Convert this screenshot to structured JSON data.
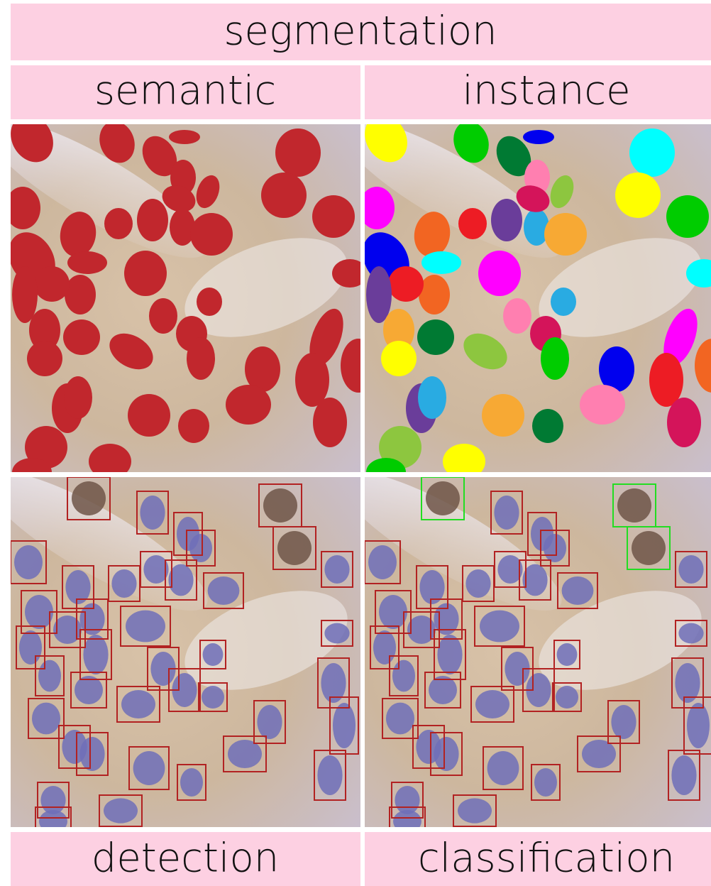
{
  "header": {
    "title": "segmentation"
  },
  "panels": [
    {
      "label": "semantic"
    },
    {
      "label": "instance"
    },
    {
      "label": "detection"
    },
    {
      "label": "classification"
    }
  ]
}
